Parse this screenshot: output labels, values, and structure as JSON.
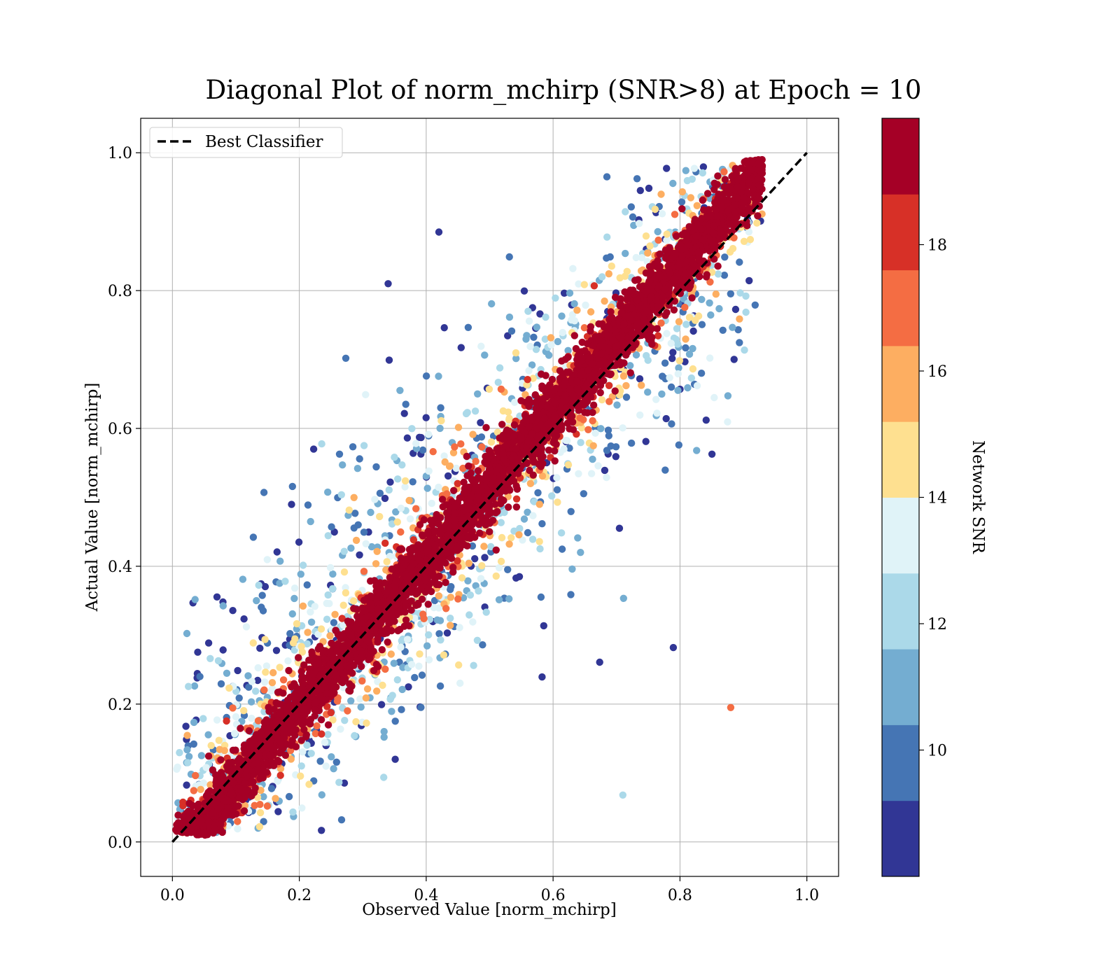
{
  "chart_data": {
    "type": "scatter",
    "title": "Diagonal Plot of norm_mchirp (SNR>8) at Epoch = 10",
    "xlabel": "Observed Value [norm_mchirp]",
    "ylabel": "Actual Value [norm_mchirp]",
    "xlim": [
      -0.05,
      1.05
    ],
    "ylim": [
      -0.05,
      1.05
    ],
    "xticks": [
      "0.0",
      "0.2",
      "0.4",
      "0.6",
      "0.8",
      "1.0"
    ],
    "yticks": [
      "0.0",
      "0.2",
      "0.4",
      "0.6",
      "0.8",
      "1.0"
    ],
    "grid": true,
    "legend": {
      "placement": "top-left",
      "entries": [
        {
          "label": "Best Classifier",
          "style": "dashed",
          "color": "#000000"
        }
      ]
    },
    "reference_line": {
      "name": "Best Classifier",
      "x": [
        0.0,
        1.0
      ],
      "y": [
        0.0,
        1.0
      ]
    },
    "point_cloud": {
      "description_of_spread": "points cluster along the diagonal; high SNR points lie close to the line, low SNR points scatter farther away",
      "x_range": [
        0.0,
        0.92
      ],
      "y_range": [
        0.0,
        1.0
      ],
      "snr_range": [
        8,
        20
      ],
      "outliers": [
        {
          "x": 0.88,
          "y": 0.195,
          "snr": 17
        },
        {
          "x": 0.42,
          "y": 0.885,
          "snr": 8.5
        },
        {
          "x": 0.34,
          "y": 0.81,
          "snr": 8.5
        },
        {
          "x": 0.71,
          "y": 0.068,
          "snr": 12
        }
      ]
    },
    "colorbar": {
      "label": "Network SNR",
      "bounds": [
        8,
        20
      ],
      "ticks": [
        "10",
        "12",
        "14",
        "16",
        "18"
      ],
      "tick_values": [
        10,
        12,
        14,
        16,
        18
      ],
      "colors": [
        "#313695",
        "#4575b4",
        "#74add1",
        "#abd9e9",
        "#e0f3f8",
        "#fee090",
        "#fdae61",
        "#f46d43",
        "#d73027",
        "#a50026"
      ]
    }
  }
}
